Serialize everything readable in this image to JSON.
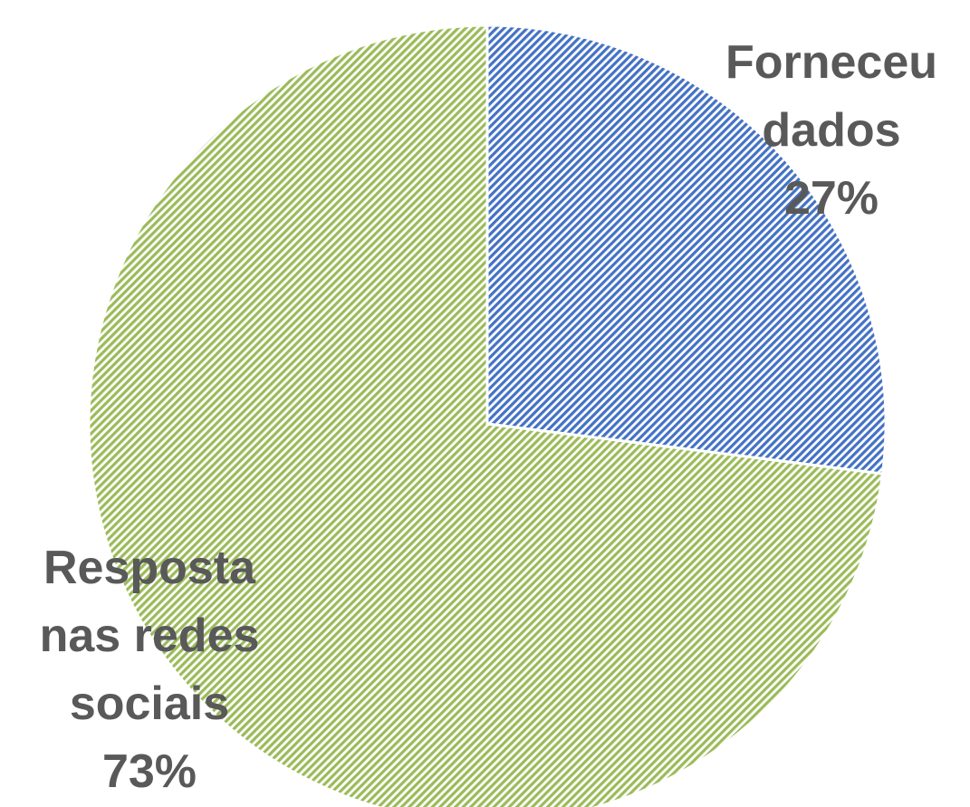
{
  "chart_data": {
    "type": "pie",
    "categories": [
      "Forneceu dados",
      "Resposta nas redes sociais"
    ],
    "values": [
      27,
      73
    ],
    "value_labels": [
      "27%",
      "73%"
    ],
    "colors": [
      "#4472c4",
      "#9bbb59"
    ]
  }
}
